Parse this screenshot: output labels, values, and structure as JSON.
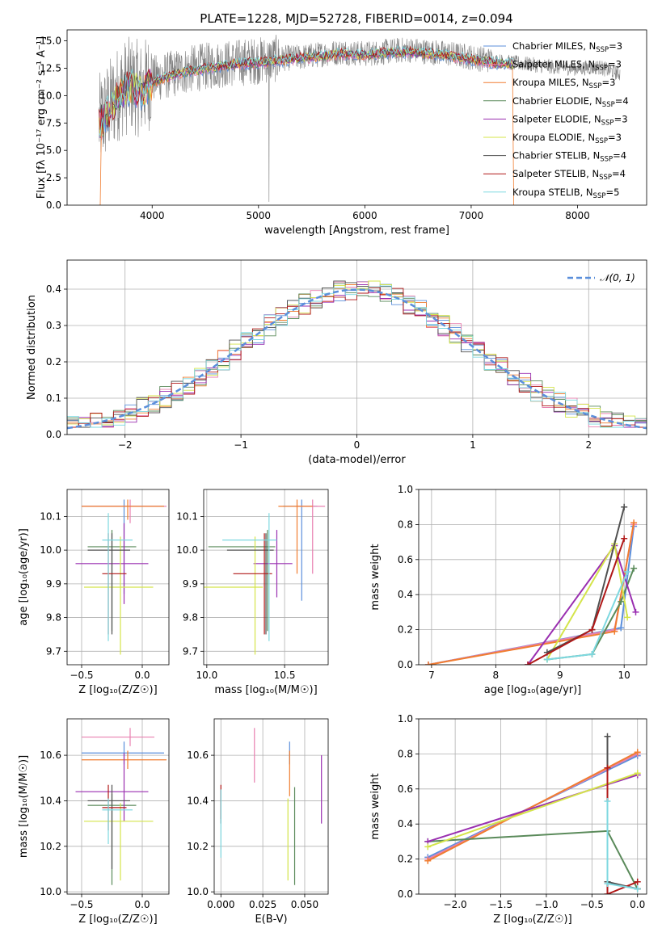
{
  "figure": {
    "title": "PLATE=1228, MJD=52728, FIBERID=0014, z=0.094"
  },
  "models": [
    {
      "imf": "Chabrier",
      "lib": "MILES",
      "n": "3",
      "color": "#5b8fdb"
    },
    {
      "imf": "Salpeter",
      "lib": "MILES",
      "n": "3",
      "color": "#e880b0"
    },
    {
      "imf": "Kroupa",
      "lib": "MILES",
      "n": "3",
      "color": "#f07d30"
    },
    {
      "imf": "Chabrier",
      "lib": "ELODIE",
      "n": "4",
      "color": "#5a8a5a"
    },
    {
      "imf": "Salpeter",
      "lib": "ELODIE",
      "n": "3",
      "color": "#9a2fb0"
    },
    {
      "imf": "Kroupa",
      "lib": "ELODIE",
      "n": "3",
      "color": "#d4e44a"
    },
    {
      "imf": "Chabrier",
      "lib": "STELIB",
      "n": "4",
      "color": "#505050"
    },
    {
      "imf": "Salpeter",
      "lib": "STELIB",
      "n": "4",
      "color": "#b01818"
    },
    {
      "imf": "Kroupa",
      "lib": "STELIB",
      "n": "5",
      "color": "#7dd8e0"
    }
  ],
  "chart_data": [
    {
      "id": "spectrum",
      "type": "line",
      "xlabel": "wavelength [Angstrom, rest frame]",
      "ylabel": "Flux [fλ 10⁻¹⁷ erg cm⁻² s⁻¹ A⁻¹]",
      "xlim": [
        3200,
        8650
      ],
      "ylim": [
        0,
        16
      ],
      "xticks": [
        4000,
        5000,
        6000,
        7000,
        8000
      ],
      "yticks": [
        0.0,
        2.5,
        5.0,
        7.5,
        10.0,
        12.5,
        15.0
      ],
      "data_color": "#808080",
      "series": [
        {
          "name": "data",
          "x": [
            3500,
            3600,
            3700,
            3800,
            3900,
            4000,
            4200,
            4400,
            4600,
            4800,
            5000,
            5200,
            5400,
            5600,
            5800,
            6000,
            6200,
            6400,
            6600,
            6800,
            7000,
            7200,
            7400,
            7600,
            7800,
            8000,
            8200,
            8400
          ],
          "y": [
            7.5,
            9.0,
            10.5,
            11.0,
            10.5,
            11.5,
            12.0,
            12.5,
            12.8,
            13.0,
            13.2,
            13.4,
            13.5,
            13.8,
            14.0,
            13.8,
            14.0,
            14.2,
            14.0,
            13.8,
            13.5,
            13.2,
            13.0,
            12.8,
            12.6,
            12.5,
            12.6,
            12.0
          ]
        },
        {
          "name": "model",
          "x": [
            3500,
            3600,
            3700,
            3800,
            3900,
            4000,
            4200,
            4400,
            4600,
            4800,
            5000,
            5200,
            5400,
            5600,
            5800,
            6000,
            6200,
            6400,
            6600,
            6800,
            7000,
            7200,
            7400
          ],
          "y": [
            7.3,
            8.5,
            10.2,
            10.8,
            10.3,
            11.2,
            11.9,
            12.3,
            12.6,
            12.9,
            13.0,
            13.2,
            13.4,
            13.6,
            13.8,
            13.7,
            13.9,
            14.0,
            13.8,
            13.6,
            13.3,
            13.0,
            12.8
          ]
        }
      ]
    },
    {
      "id": "residuals",
      "type": "line",
      "xlabel": "(data-model)/error",
      "ylabel": "Normed distribution",
      "xlim": [
        -2.5,
        2.5
      ],
      "ylim": [
        0,
        0.48
      ],
      "xticks": [
        -2,
        -1,
        0,
        1,
        2
      ],
      "yticks": [
        0.0,
        0.1,
        0.2,
        0.3,
        0.4
      ],
      "legend": "𝒩(0, 1)",
      "gauss_color": "#5b8fdb"
    },
    {
      "id": "age_vs_Z",
      "type": "scatter",
      "xlabel": "Z [log₁₀(Z/Z☉)]",
      "ylabel": "age  [log₁₀(age/yr)]",
      "xlim": [
        -0.62,
        0.22
      ],
      "ylim": [
        9.66,
        10.18
      ],
      "xticks": [
        -0.5,
        0.0
      ],
      "yticks": [
        9.7,
        9.8,
        9.9,
        10.0,
        10.1
      ],
      "points": [
        {
          "m": 0,
          "x": -0.15,
          "y": 10.13,
          "xerr": [
            0.35,
            0.33
          ],
          "yerr": [
            0.26,
            0.02
          ]
        },
        {
          "m": 1,
          "x": -0.1,
          "y": 10.13,
          "xerr": [
            0.4,
            0.3
          ],
          "yerr": [
            0.05,
            0.02
          ]
        },
        {
          "m": 2,
          "x": -0.12,
          "y": 10.13,
          "xerr": [
            0.38,
            0.3
          ],
          "yerr": [
            0.04,
            0.02
          ]
        },
        {
          "m": 3,
          "x": -0.25,
          "y": 10.01,
          "xerr": [
            0.2,
            0.2
          ],
          "yerr": [
            0.25,
            0.05
          ]
        },
        {
          "m": 4,
          "x": -0.15,
          "y": 9.96,
          "xerr": [
            0.4,
            0.2
          ],
          "yerr": [
            0.12,
            0.12
          ]
        },
        {
          "m": 5,
          "x": -0.18,
          "y": 9.89,
          "xerr": [
            0.3,
            0.27
          ],
          "yerr": [
            0.2,
            0.15
          ]
        },
        {
          "m": 6,
          "x": -0.25,
          "y": 10.0,
          "xerr": [
            0.2,
            0.15
          ],
          "yerr": [
            0.25,
            0.05
          ]
        },
        {
          "m": 7,
          "x": -0.28,
          "y": 9.93,
          "xerr": [
            0.05,
            0.15
          ],
          "yerr": [
            0.18,
            0.12
          ]
        },
        {
          "m": 8,
          "x": -0.28,
          "y": 10.03,
          "xerr": [
            0.05,
            0.2
          ],
          "yerr": [
            0.3,
            0.08
          ]
        }
      ]
    },
    {
      "id": "age_vs_mass",
      "type": "scatter",
      "xlabel": "mass [log₁₀(M/M☉)]",
      "ylabel": "",
      "xlim": [
        9.98,
        10.78
      ],
      "ylim": [
        9.66,
        10.18
      ],
      "xticks": [
        10.0,
        10.5
      ],
      "yticks": [
        9.7,
        9.8,
        9.9,
        10.0,
        10.1
      ],
      "points": [
        {
          "m": 0,
          "x": 10.61,
          "y": 10.13,
          "xerr": [
            0.12,
            0.1
          ],
          "yerr": [
            0.28,
            0.02
          ]
        },
        {
          "m": 1,
          "x": 10.68,
          "y": 10.13,
          "xerr": [
            0.1,
            0.08
          ],
          "yerr": [
            0.2,
            0.02
          ]
        },
        {
          "m": 2,
          "x": 10.58,
          "y": 10.13,
          "xerr": [
            0.12,
            0.1
          ],
          "yerr": [
            0.2,
            0.02
          ]
        },
        {
          "m": 3,
          "x": 10.39,
          "y": 10.01,
          "xerr": [
            0.38,
            0.05
          ],
          "yerr": [
            0.25,
            0.05
          ]
        },
        {
          "m": 4,
          "x": 10.45,
          "y": 9.96,
          "xerr": [
            0.15,
            0.1
          ],
          "yerr": [
            0.1,
            0.1
          ]
        },
        {
          "m": 5,
          "x": 10.31,
          "y": 9.89,
          "xerr": [
            0.35,
            0.05
          ],
          "yerr": [
            0.2,
            0.15
          ]
        },
        {
          "m": 6,
          "x": 10.38,
          "y": 10.0,
          "xerr": [
            0.25,
            0.05
          ],
          "yerr": [
            0.25,
            0.05
          ]
        },
        {
          "m": 7,
          "x": 10.37,
          "y": 9.93,
          "xerr": [
            0.2,
            0.05
          ],
          "yerr": [
            0.18,
            0.12
          ]
        },
        {
          "m": 8,
          "x": 10.4,
          "y": 10.03,
          "xerr": [
            0.3,
            0.05
          ],
          "yerr": [
            0.3,
            0.08
          ]
        }
      ]
    },
    {
      "id": "weight_vs_age",
      "type": "line",
      "xlabel": "age  [log₁₀(age/yr)]",
      "ylabel": "mass weight",
      "xlim": [
        6.8,
        10.35
      ],
      "ylim": [
        0,
        1
      ],
      "xticks": [
        7,
        8,
        9,
        10
      ],
      "yticks": [
        0.0,
        0.2,
        0.4,
        0.6,
        0.8,
        1.0
      ],
      "series": [
        {
          "m": 0,
          "x": [
            6.95,
            9.95,
            10.15
          ],
          "y": [
            0.0,
            0.21,
            0.79
          ]
        },
        {
          "m": 1,
          "x": [
            6.95,
            9.85,
            10.15
          ],
          "y": [
            0.0,
            0.2,
            0.8
          ]
        },
        {
          "m": 2,
          "x": [
            6.95,
            9.85,
            10.15
          ],
          "y": [
            0.0,
            0.19,
            0.81
          ]
        },
        {
          "m": 3,
          "x": [
            8.8,
            9.5,
            9.95,
            10.15
          ],
          "y": [
            0.03,
            0.06,
            0.36,
            0.55
          ]
        },
        {
          "m": 4,
          "x": [
            8.5,
            9.85,
            10.18
          ],
          "y": [
            0.0,
            0.68,
            0.3
          ]
        },
        {
          "m": 5,
          "x": [
            8.8,
            9.85,
            10.05
          ],
          "y": [
            0.03,
            0.69,
            0.27
          ]
        },
        {
          "m": 6,
          "x": [
            8.8,
            9.5,
            10.0
          ],
          "y": [
            0.07,
            0.2,
            0.9
          ]
        },
        {
          "m": 7,
          "x": [
            8.5,
            9.5,
            10.0
          ],
          "y": [
            0.0,
            0.2,
            0.72
          ]
        },
        {
          "m": 8,
          "x": [
            8.8,
            9.5,
            10.05
          ],
          "y": [
            0.03,
            0.06,
            0.53
          ]
        }
      ]
    },
    {
      "id": "mass_vs_Z",
      "type": "scatter",
      "xlabel": "Z [log₁₀(Z/Z☉)]",
      "ylabel": "mass [log₁₀(M/M☉)]",
      "xlim": [
        -0.62,
        0.22
      ],
      "ylim": [
        9.99,
        10.76
      ],
      "xticks": [
        -0.5,
        0.0
      ],
      "yticks": [
        10.0,
        10.2,
        10.4,
        10.6
      ],
      "points": [
        {
          "m": 0,
          "x": -0.15,
          "y": 10.61,
          "xerr": [
            0.35,
            0.33
          ],
          "yerr": [
            0.05,
            0.05
          ]
        },
        {
          "m": 1,
          "x": -0.1,
          "y": 10.68,
          "xerr": [
            0.4,
            0.2
          ],
          "yerr": [
            0.04,
            0.04
          ]
        },
        {
          "m": 2,
          "x": -0.12,
          "y": 10.58,
          "xerr": [
            0.38,
            0.32
          ],
          "yerr": [
            0.04,
            0.04
          ]
        },
        {
          "m": 3,
          "x": -0.25,
          "y": 10.38,
          "xerr": [
            0.2,
            0.2
          ],
          "yerr": [
            0.35,
            0.05
          ]
        },
        {
          "m": 4,
          "x": -0.15,
          "y": 10.44,
          "xerr": [
            0.4,
            0.2
          ],
          "yerr": [
            0.13,
            0.17
          ]
        },
        {
          "m": 5,
          "x": -0.18,
          "y": 10.31,
          "xerr": [
            0.3,
            0.27
          ],
          "yerr": [
            0.26,
            0.08
          ]
        },
        {
          "m": 6,
          "x": -0.25,
          "y": 10.4,
          "xerr": [
            0.2,
            0.15
          ],
          "yerr": [
            0.3,
            0.07
          ]
        },
        {
          "m": 7,
          "x": -0.28,
          "y": 10.37,
          "xerr": [
            0.05,
            0.15
          ],
          "yerr": [
            0.1,
            0.1
          ]
        },
        {
          "m": 8,
          "x": -0.28,
          "y": 10.36,
          "xerr": [
            0.05,
            0.2
          ],
          "yerr": [
            0.15,
            0.05
          ]
        }
      ]
    },
    {
      "id": "mass_vs_ebv",
      "type": "scatter",
      "xlabel": "E(B-V)",
      "ylabel": "",
      "xlim": [
        -0.004,
        0.064
      ],
      "ylim": [
        9.99,
        10.76
      ],
      "xticks": [
        0.0,
        0.025,
        0.05
      ],
      "xticklabels": [
        "0.000",
        "0.025",
        "0.050"
      ],
      "yticks": [
        10.0,
        10.2,
        10.4,
        10.6
      ],
      "points": [
        {
          "m": 0,
          "x": 0.041,
          "y": 10.61,
          "yerr": [
            0.05,
            0.05
          ]
        },
        {
          "m": 1,
          "x": 0.02,
          "y": 10.68,
          "yerr": [
            0.2,
            0.04
          ]
        },
        {
          "m": 2,
          "x": 0.041,
          "y": 10.58,
          "yerr": [
            0.16,
            0.04
          ]
        },
        {
          "m": 3,
          "x": 0.044,
          "y": 10.38,
          "yerr": [
            0.35,
            0.08
          ]
        },
        {
          "m": 4,
          "x": 0.06,
          "y": 10.44,
          "yerr": [
            0.14,
            0.16
          ]
        },
        {
          "m": 5,
          "x": 0.04,
          "y": 10.31,
          "yerr": [
            0.26,
            0.1
          ]
        },
        {
          "m": 6,
          "x": 0.0,
          "y": 10.4,
          "yerr": [
            0.1,
            0.05
          ]
        },
        {
          "m": 7,
          "x": 0.0,
          "y": 10.42,
          "yerr": [
            0.1,
            0.05
          ]
        },
        {
          "m": 8,
          "x": 0.0,
          "y": 10.3,
          "yerr": [
            0.15,
            0.15
          ]
        }
      ]
    },
    {
      "id": "weight_vs_Z",
      "type": "line",
      "xlabel": "Z [log₁₀(Z/Z☉)]",
      "ylabel": "mass weight",
      "xlim": [
        -2.4,
        0.1
      ],
      "ylim": [
        0,
        1
      ],
      "xticks": [
        -2.0,
        -1.5,
        -1.0,
        -0.5,
        0.0
      ],
      "yticks": [
        0.0,
        0.2,
        0.4,
        0.6,
        0.8,
        1.0
      ],
      "series": [
        {
          "m": 0,
          "x": [
            -2.3,
            0.0
          ],
          "y": [
            0.21,
            0.79
          ]
        },
        {
          "m": 1,
          "x": [
            -2.3,
            0.0
          ],
          "y": [
            0.2,
            0.8
          ]
        },
        {
          "m": 2,
          "x": [
            -2.3,
            0.0
          ],
          "y": [
            0.19,
            0.81
          ]
        },
        {
          "m": 3,
          "x": [
            -2.3,
            -0.33,
            0.0
          ],
          "y": [
            0.3,
            0.36,
            0.03
          ]
        },
        {
          "m": 4,
          "x": [
            -2.3,
            0.0
          ],
          "y": [
            0.3,
            0.68
          ]
        },
        {
          "m": 5,
          "x": [
            -2.3,
            0.0
          ],
          "y": [
            0.27,
            0.69
          ]
        },
        {
          "m": 6,
          "x": [
            -0.33,
            -0.33,
            0.0
          ],
          "y": [
            0.9,
            0.07,
            0.03
          ]
        },
        {
          "m": 7,
          "x": [
            -0.33,
            -0.33,
            0.0
          ],
          "y": [
            0.72,
            0.0,
            0.07
          ]
        },
        {
          "m": 8,
          "x": [
            -0.33,
            -0.33,
            0.0
          ],
          "y": [
            0.53,
            0.06,
            0.03
          ]
        }
      ]
    }
  ]
}
